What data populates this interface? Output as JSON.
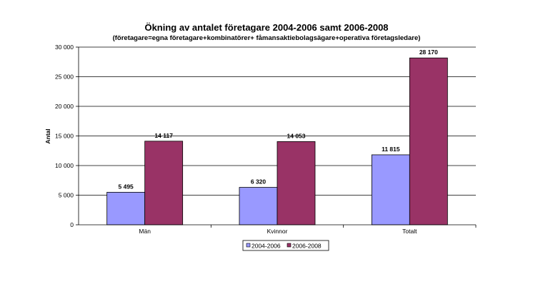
{
  "chart_data": {
    "type": "bar",
    "title": "Ökning av antalet företagare 2004-2006 samt 2006-2008",
    "subtitle": "(företagare=egna företagare+kombinatörer+ fåmansaktiebolagsägare+operativa företagsledare)",
    "ylabel": "Antal",
    "xlabel": "",
    "ylim": [
      0,
      30000
    ],
    "yticks": [
      0,
      5000,
      10000,
      15000,
      20000,
      25000,
      30000
    ],
    "ytick_labels": [
      "0",
      "5 000",
      "10 000",
      "15 000",
      "20 000",
      "25 000",
      "30 000"
    ],
    "categories": [
      "Män",
      "Kvinnor",
      "Totalt"
    ],
    "series": [
      {
        "name": "2004-2006",
        "color": "#9999ff",
        "values": [
          5495,
          6320,
          11815
        ],
        "labels": [
          "5 495",
          "6 320",
          "11 815"
        ]
      },
      {
        "name": "2006-2008",
        "color": "#993366",
        "values": [
          14117,
          14053,
          28170
        ],
        "labels": [
          "14 117",
          "14 053",
          "28 170"
        ]
      }
    ],
    "grid": true,
    "legend_position": "bottom"
  }
}
